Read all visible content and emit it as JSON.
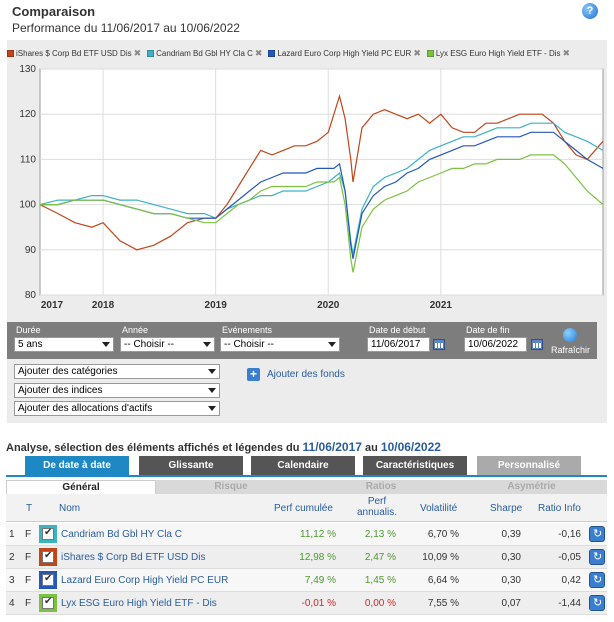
{
  "header": {
    "title": "Comparaison",
    "subtitle": "Performance du 11/06/2017 au 10/06/2022",
    "help": "?"
  },
  "legend": [
    {
      "label": "iShares $ Corp Bd ETF USD Dis",
      "color": "#c0461a"
    },
    {
      "label": "Candriam Bd Gbl HY Cla C",
      "color": "#3bb3c3"
    },
    {
      "label": "Lazard Euro Corp High Yield PC EUR",
      "color": "#2458b8"
    },
    {
      "label": "Lyx ESG Euro High Yield ETF - Dis",
      "color": "#7cc242"
    }
  ],
  "legend_close": "✖",
  "chart_data": {
    "type": "line",
    "title": "",
    "xlabel": "",
    "ylabel": "",
    "ylim": [
      80,
      130
    ],
    "yticks": [
      "130",
      "120",
      "110",
      "100",
      "90",
      "80"
    ],
    "xticks": [
      "2017",
      "2018",
      "2019",
      "2020",
      "2021"
    ],
    "grid": true,
    "xrange": [
      2017.44,
      2022.44
    ],
    "series": [
      {
        "name": "iShares $ Corp Bd ETF USD Dis",
        "color": "#c0461a",
        "x": [
          2017.44,
          2017.6,
          2017.75,
          2017.9,
          2018.0,
          2018.15,
          2018.3,
          2018.45,
          2018.6,
          2018.75,
          2018.9,
          2019.0,
          2019.1,
          2019.2,
          2019.3,
          2019.4,
          2019.5,
          2019.6,
          2019.7,
          2019.8,
          2019.9,
          2020.0,
          2020.05,
          2020.1,
          2020.15,
          2020.2,
          2020.22,
          2020.3,
          2020.4,
          2020.5,
          2020.6,
          2020.7,
          2020.8,
          2020.9,
          2021.0,
          2021.1,
          2021.2,
          2021.3,
          2021.4,
          2021.5,
          2021.6,
          2021.7,
          2021.8,
          2021.9,
          2022.0,
          2022.05,
          2022.1,
          2022.2,
          2022.3,
          2022.44
        ],
        "y": [
          100,
          98,
          96,
          95,
          96,
          92,
          90,
          91,
          93,
          96,
          97,
          97,
          100,
          104,
          108,
          112,
          111,
          112,
          113,
          113,
          114,
          116,
          120,
          124,
          119,
          110,
          105,
          117,
          120,
          121,
          120,
          119,
          120,
          118,
          120,
          117,
          116,
          116,
          118,
          118,
          119,
          120,
          120,
          120,
          118,
          116,
          114,
          111,
          110,
          114
        ]
      },
      {
        "name": "Candriam Bd Gbl HY Cla C",
        "color": "#3bb3c3",
        "x": [
          2017.44,
          2017.6,
          2017.75,
          2017.9,
          2018.0,
          2018.15,
          2018.3,
          2018.45,
          2018.6,
          2018.75,
          2018.9,
          2019.0,
          2019.1,
          2019.2,
          2019.3,
          2019.4,
          2019.5,
          2019.6,
          2019.7,
          2019.8,
          2019.9,
          2020.0,
          2020.05,
          2020.1,
          2020.15,
          2020.2,
          2020.22,
          2020.3,
          2020.4,
          2020.5,
          2020.6,
          2020.7,
          2020.8,
          2020.9,
          2021.0,
          2021.1,
          2021.2,
          2021.3,
          2021.4,
          2021.5,
          2021.6,
          2021.7,
          2021.8,
          2021.9,
          2022.0,
          2022.05,
          2022.1,
          2022.2,
          2022.3,
          2022.44
        ],
        "y": [
          100,
          101,
          101,
          102,
          102,
          101,
          101,
          100,
          99,
          98,
          98,
          97,
          99,
          100,
          101,
          102,
          102,
          103,
          103,
          103,
          104,
          105,
          106,
          107,
          103,
          92,
          89,
          99,
          104,
          106,
          107,
          108,
          110,
          112,
          113,
          114,
          115,
          115,
          116,
          117,
          117,
          117,
          118,
          118,
          118,
          117,
          116,
          115,
          114,
          112
        ]
      },
      {
        "name": "Lazard Euro Corp High Yield PC EUR",
        "color": "#2458b8",
        "x": [
          2017.44,
          2017.6,
          2017.75,
          2017.9,
          2018.0,
          2018.15,
          2018.3,
          2018.45,
          2018.6,
          2018.75,
          2018.9,
          2019.0,
          2019.1,
          2019.2,
          2019.3,
          2019.4,
          2019.5,
          2019.6,
          2019.7,
          2019.8,
          2019.9,
          2020.0,
          2020.05,
          2020.1,
          2020.15,
          2020.2,
          2020.22,
          2020.3,
          2020.4,
          2020.5,
          2020.6,
          2020.7,
          2020.8,
          2020.9,
          2021.0,
          2021.1,
          2021.2,
          2021.3,
          2021.4,
          2021.5,
          2021.6,
          2021.7,
          2021.8,
          2021.9,
          2022.0,
          2022.05,
          2022.1,
          2022.2,
          2022.3,
          2022.44
        ],
        "y": [
          100,
          100,
          101,
          101,
          101,
          100,
          99,
          98,
          98,
          97,
          97,
          97,
          99,
          101,
          103,
          105,
          106,
          107,
          107,
          107,
          108,
          108,
          108,
          109,
          103,
          91,
          88,
          98,
          102,
          104,
          105,
          107,
          108,
          110,
          111,
          112,
          113,
          113,
          114,
          115,
          115,
          115,
          116,
          116,
          116,
          115,
          114,
          112,
          110,
          108
        ]
      },
      {
        "name": "Lyx ESG Euro High Yield ETF - Dis",
        "color": "#7cc242",
        "x": [
          2017.44,
          2017.6,
          2017.75,
          2017.9,
          2018.0,
          2018.15,
          2018.3,
          2018.45,
          2018.6,
          2018.75,
          2018.9,
          2019.0,
          2019.1,
          2019.2,
          2019.3,
          2019.4,
          2019.5,
          2019.6,
          2019.7,
          2019.8,
          2019.9,
          2020.0,
          2020.05,
          2020.1,
          2020.15,
          2020.2,
          2020.22,
          2020.3,
          2020.4,
          2020.5,
          2020.6,
          2020.7,
          2020.8,
          2020.9,
          2021.0,
          2021.1,
          2021.2,
          2021.3,
          2021.4,
          2021.5,
          2021.6,
          2021.7,
          2021.8,
          2021.9,
          2022.0,
          2022.05,
          2022.1,
          2022.2,
          2022.3,
          2022.44
        ],
        "y": [
          100,
          100,
          101,
          101,
          101,
          100,
          99,
          98,
          98,
          97,
          96,
          96,
          98,
          100,
          101,
          103,
          104,
          104,
          104,
          104,
          105,
          105,
          105,
          106,
          100,
          88,
          85,
          95,
          99,
          101,
          102,
          103,
          105,
          106,
          107,
          108,
          108,
          109,
          109,
          110,
          110,
          110,
          111,
          111,
          111,
          110,
          109,
          106,
          103,
          100
        ]
      }
    ]
  },
  "controls": {
    "duree_label": "Durée",
    "duree_value": "5 ans",
    "annee_label": "Année",
    "annee_value": "-- Choisir --",
    "evenements_label": "Evénements",
    "evenements_value": "-- Choisir --",
    "date_debut_label": "Date de début",
    "date_debut_value": "11/06/2017",
    "date_fin_label": "Date de fin",
    "date_fin_value": "10/06/2022",
    "refresh_label": "Rafraîchir"
  },
  "add": {
    "categories": "Ajouter des catégories",
    "indices": "Ajouter des indices",
    "allocations": "Ajouter des allocations d'actifs",
    "funds": "Ajouter des fonds",
    "funds_icon": "+"
  },
  "analysis": {
    "prefix": "Analyse, sélection des éléments affichés et légendes du",
    "from": "11/06/2017",
    "mid": "au",
    "to": "10/06/2022"
  },
  "tabs": [
    "De date à date",
    "Glissante",
    "Calendaire",
    "Caractéristiques",
    "Personnalisé"
  ],
  "subtabs": [
    "Général",
    "Risque",
    "Ratios",
    "Asymétrie"
  ],
  "table": {
    "headers": {
      "t": "T",
      "nom": "Nom",
      "perf_cumulee": "Perf cumulée",
      "perf_annualis_1": "Perf",
      "perf_annualis_2": "annualis.",
      "volatilite": "Volatilité",
      "sharpe": "Sharpe",
      "ratio_info": "Ratio Info"
    },
    "rows": [
      {
        "idx": "1",
        "t": "F",
        "color": "#3bb3c3",
        "name": "Candriam Bd Gbl HY Cla C",
        "perf_cumulee": "11,12 %",
        "perf_annualis": "2,13 %",
        "volatilite": "6,70 %",
        "sharpe": "0,39",
        "ratio_info": "-0,16",
        "sign": "pos"
      },
      {
        "idx": "2",
        "t": "F",
        "color": "#c0461a",
        "name": "iShares $ Corp Bd ETF USD Dis",
        "perf_cumulee": "12,98 %",
        "perf_annualis": "2,47 %",
        "volatilite": "10,09 %",
        "sharpe": "0,30",
        "ratio_info": "-0,05",
        "sign": "pos"
      },
      {
        "idx": "3",
        "t": "F",
        "color": "#2458b8",
        "name": "Lazard Euro Corp High Yield PC EUR",
        "perf_cumulee": "7,49 %",
        "perf_annualis": "1,45 %",
        "volatilite": "6,64 %",
        "sharpe": "0,30",
        "ratio_info": "0,42",
        "sign": "pos"
      },
      {
        "idx": "4",
        "t": "F",
        "color": "#7cc242",
        "name": "Lyx ESG Euro High Yield ETF - Dis",
        "perf_cumulee": "-0,01 %",
        "perf_annualis": "0,00 %",
        "volatilite": "7,55 %",
        "sharpe": "0,07",
        "ratio_info": "-1,44",
        "sign": "neg"
      }
    ]
  }
}
